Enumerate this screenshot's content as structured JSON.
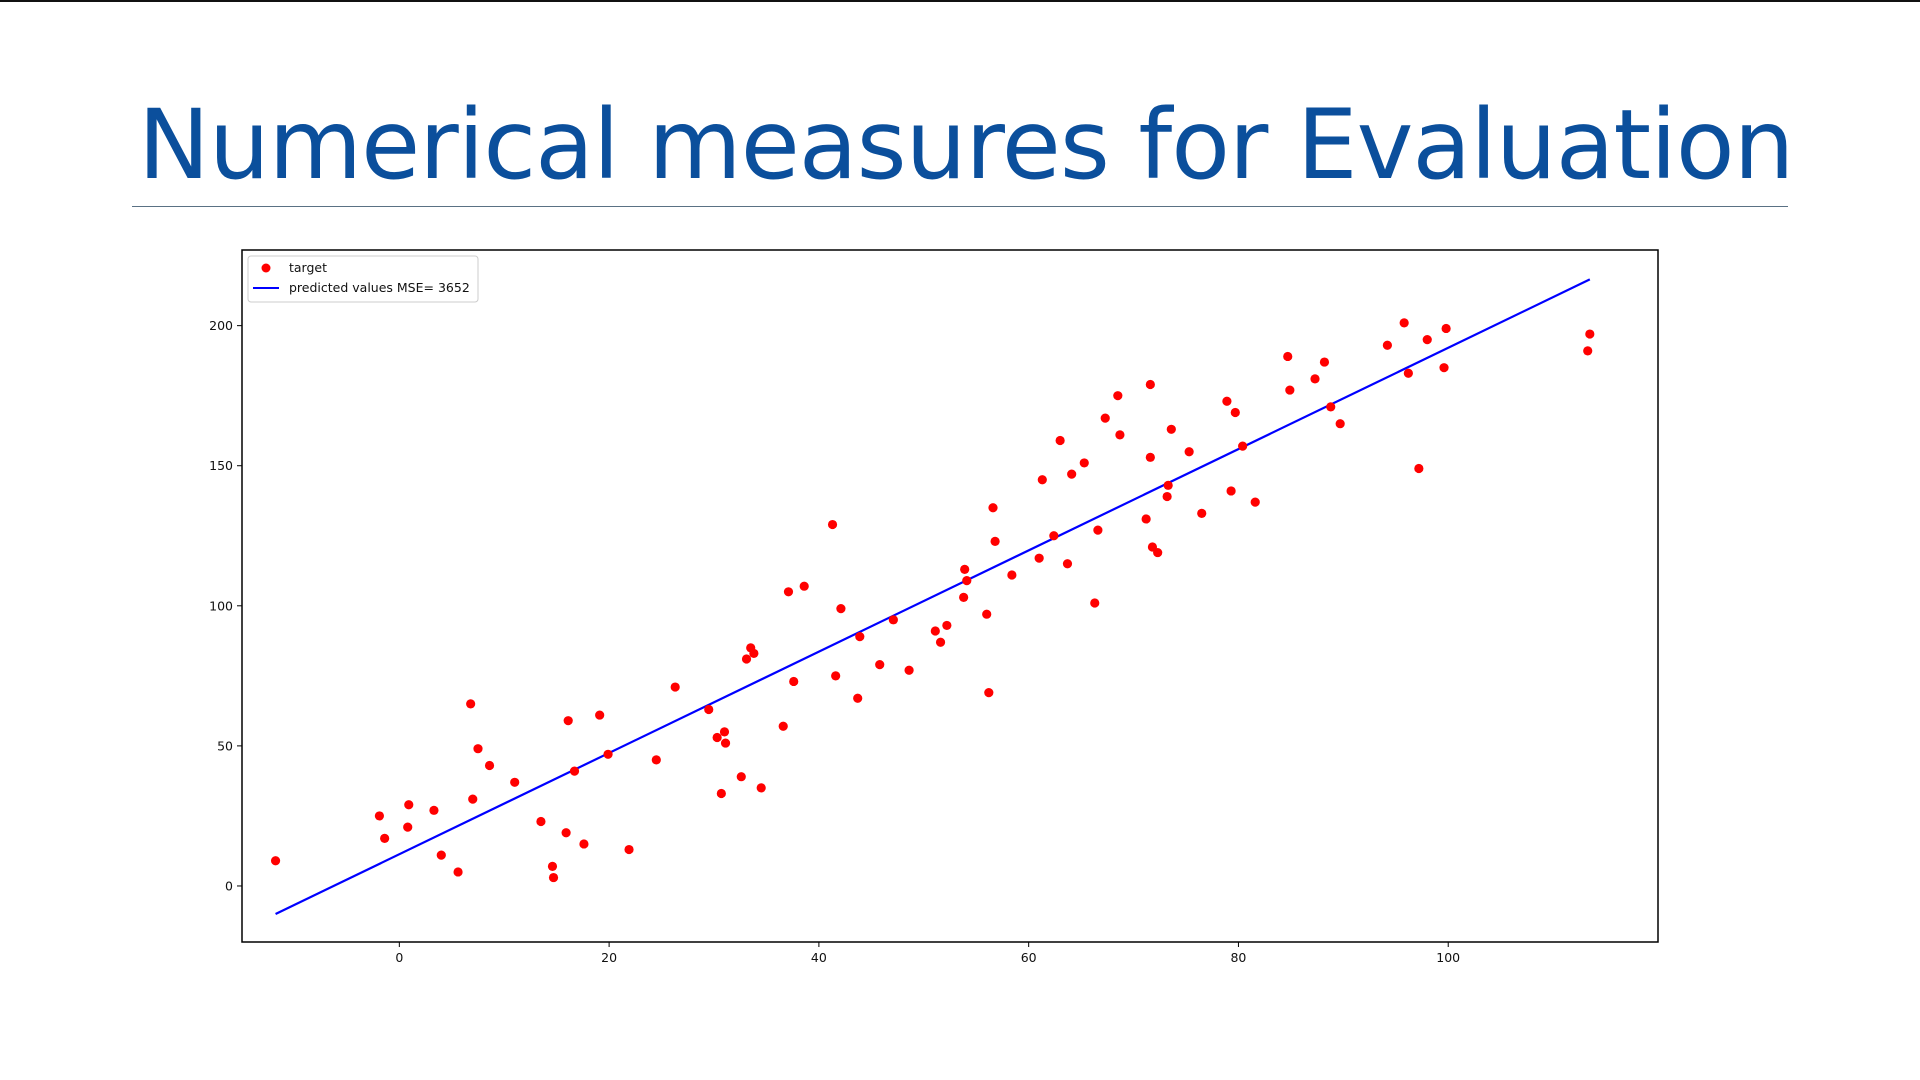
{
  "slide": {
    "title": "Numerical measures for Evaluation"
  },
  "colors": {
    "title": "#0b4f9c",
    "points": "#ff0000",
    "line": "#0000ff"
  },
  "chart_data": {
    "type": "scatter",
    "title": "",
    "xlabel": "",
    "ylabel": "",
    "xlim": [
      -15,
      120
    ],
    "ylim": [
      -20,
      227
    ],
    "xticks": [
      0,
      20,
      40,
      60,
      80,
      100
    ],
    "yticks": [
      0,
      50,
      100,
      150,
      200
    ],
    "grid": false,
    "legend": {
      "placement": "top-left",
      "entries": [
        "target",
        "predicted values MSE= 3652"
      ]
    },
    "series": [
      {
        "name": "target",
        "kind": "scatter",
        "color": "#ff0000",
        "points": [
          [
            -11.8,
            9
          ],
          [
            -1.9,
            25
          ],
          [
            -1.4,
            17
          ],
          [
            0.8,
            21
          ],
          [
            0.9,
            29
          ],
          [
            3.3,
            27
          ],
          [
            4,
            11
          ],
          [
            5.6,
            5
          ],
          [
            6.8,
            65
          ],
          [
            7,
            31
          ],
          [
            7.5,
            49
          ],
          [
            8.6,
            43
          ],
          [
            11,
            37
          ],
          [
            13.5,
            23
          ],
          [
            14.6,
            7
          ],
          [
            14.7,
            3
          ],
          [
            15.9,
            19
          ],
          [
            16.1,
            59
          ],
          [
            16.7,
            41
          ],
          [
            17.6,
            15
          ],
          [
            19.1,
            61
          ],
          [
            19.9,
            47
          ],
          [
            21.9,
            13
          ],
          [
            24.5,
            45
          ],
          [
            26.3,
            71
          ],
          [
            29.5,
            63
          ],
          [
            30.3,
            53
          ],
          [
            30.7,
            33
          ],
          [
            31,
            55
          ],
          [
            31.1,
            51
          ],
          [
            32.6,
            39
          ],
          [
            33.1,
            81
          ],
          [
            33.5,
            85
          ],
          [
            33.8,
            83
          ],
          [
            34.5,
            35
          ],
          [
            36.6,
            57
          ],
          [
            37.1,
            105
          ],
          [
            37.6,
            73
          ],
          [
            38.6,
            107
          ],
          [
            41.3,
            129
          ],
          [
            41.6,
            75
          ],
          [
            42.1,
            99
          ],
          [
            43.7,
            67
          ],
          [
            43.9,
            89
          ],
          [
            45.8,
            79
          ],
          [
            47.1,
            95
          ],
          [
            48.6,
            77
          ],
          [
            51.1,
            91
          ],
          [
            51.6,
            87
          ],
          [
            52.2,
            93
          ],
          [
            53.8,
            103
          ],
          [
            53.9,
            113
          ],
          [
            54.1,
            109
          ],
          [
            56,
            97
          ],
          [
            56.2,
            69
          ],
          [
            56.6,
            135
          ],
          [
            56.8,
            123
          ],
          [
            58.4,
            111
          ],
          [
            61,
            117
          ],
          [
            61.3,
            145
          ],
          [
            62.4,
            125
          ],
          [
            63,
            159
          ],
          [
            63.7,
            115
          ],
          [
            64.1,
            147
          ],
          [
            65.3,
            151
          ],
          [
            66.3,
            101
          ],
          [
            66.6,
            127
          ],
          [
            67.3,
            167
          ],
          [
            68.5,
            175
          ],
          [
            68.7,
            161
          ],
          [
            71.2,
            131
          ],
          [
            71.6,
            153
          ],
          [
            71.6,
            179
          ],
          [
            71.8,
            121
          ],
          [
            72.3,
            119
          ],
          [
            73.2,
            139
          ],
          [
            73.3,
            143
          ],
          [
            73.6,
            163
          ],
          [
            75.3,
            155
          ],
          [
            76.5,
            133
          ],
          [
            78.9,
            173
          ],
          [
            79.3,
            141
          ],
          [
            79.7,
            169
          ],
          [
            80.4,
            157
          ],
          [
            81.6,
            137
          ],
          [
            84.7,
            189
          ],
          [
            84.9,
            177
          ],
          [
            87.3,
            181
          ],
          [
            88.2,
            187
          ],
          [
            88.8,
            171
          ],
          [
            89.7,
            165
          ],
          [
            94.2,
            193
          ],
          [
            95.8,
            201
          ],
          [
            96.2,
            183
          ],
          [
            97.2,
            149
          ],
          [
            98,
            195
          ],
          [
            99.6,
            185
          ],
          [
            99.8,
            199
          ],
          [
            113.3,
            191
          ],
          [
            113.5,
            197
          ]
        ]
      },
      {
        "name": "predicted values MSE= 3652",
        "kind": "line",
        "color": "#0000ff",
        "points": [
          [
            -11.8,
            -10
          ],
          [
            113.5,
            216.5
          ]
        ]
      }
    ]
  }
}
